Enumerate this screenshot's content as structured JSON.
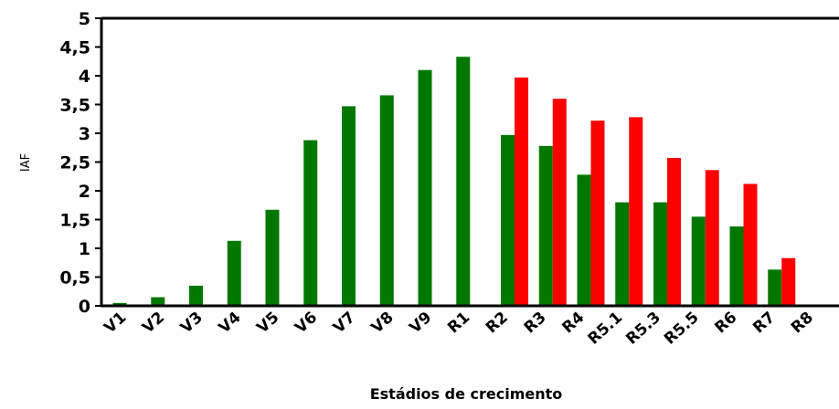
{
  "chart_data": {
    "type": "bar",
    "title": "",
    "xlabel": "Estádios de crecimento",
    "ylabel": "IAF",
    "ylim": [
      0,
      5
    ],
    "yticks": [
      "0",
      "0,5",
      "1",
      "1,5",
      "2",
      "2,5",
      "3",
      "3,5",
      "4",
      "4,5",
      "5"
    ],
    "categories": [
      "V1",
      "V2",
      "V3",
      "V4",
      "V5",
      "V6",
      "V7",
      "V8",
      "V9",
      "R1",
      "R2",
      "R3",
      "R4",
      "R5.1",
      "R5.3",
      "R5.5",
      "R6",
      "R7",
      "R8"
    ],
    "series": [
      {
        "color": "#007800",
        "values": [
          0.05,
          0.15,
          0.35,
          1.13,
          1.67,
          2.88,
          3.47,
          3.66,
          4.1,
          4.33,
          2.97,
          2.78,
          2.28,
          1.8,
          1.8,
          1.55,
          1.38,
          0.63,
          0
        ]
      },
      {
        "color": "#ff0000",
        "values": [
          0,
          0,
          0,
          0,
          0,
          0,
          0,
          0,
          0,
          0,
          3.97,
          3.6,
          3.22,
          3.28,
          2.57,
          2.36,
          2.12,
          0.83,
          0
        ]
      }
    ],
    "grid": false,
    "legend": "none"
  }
}
